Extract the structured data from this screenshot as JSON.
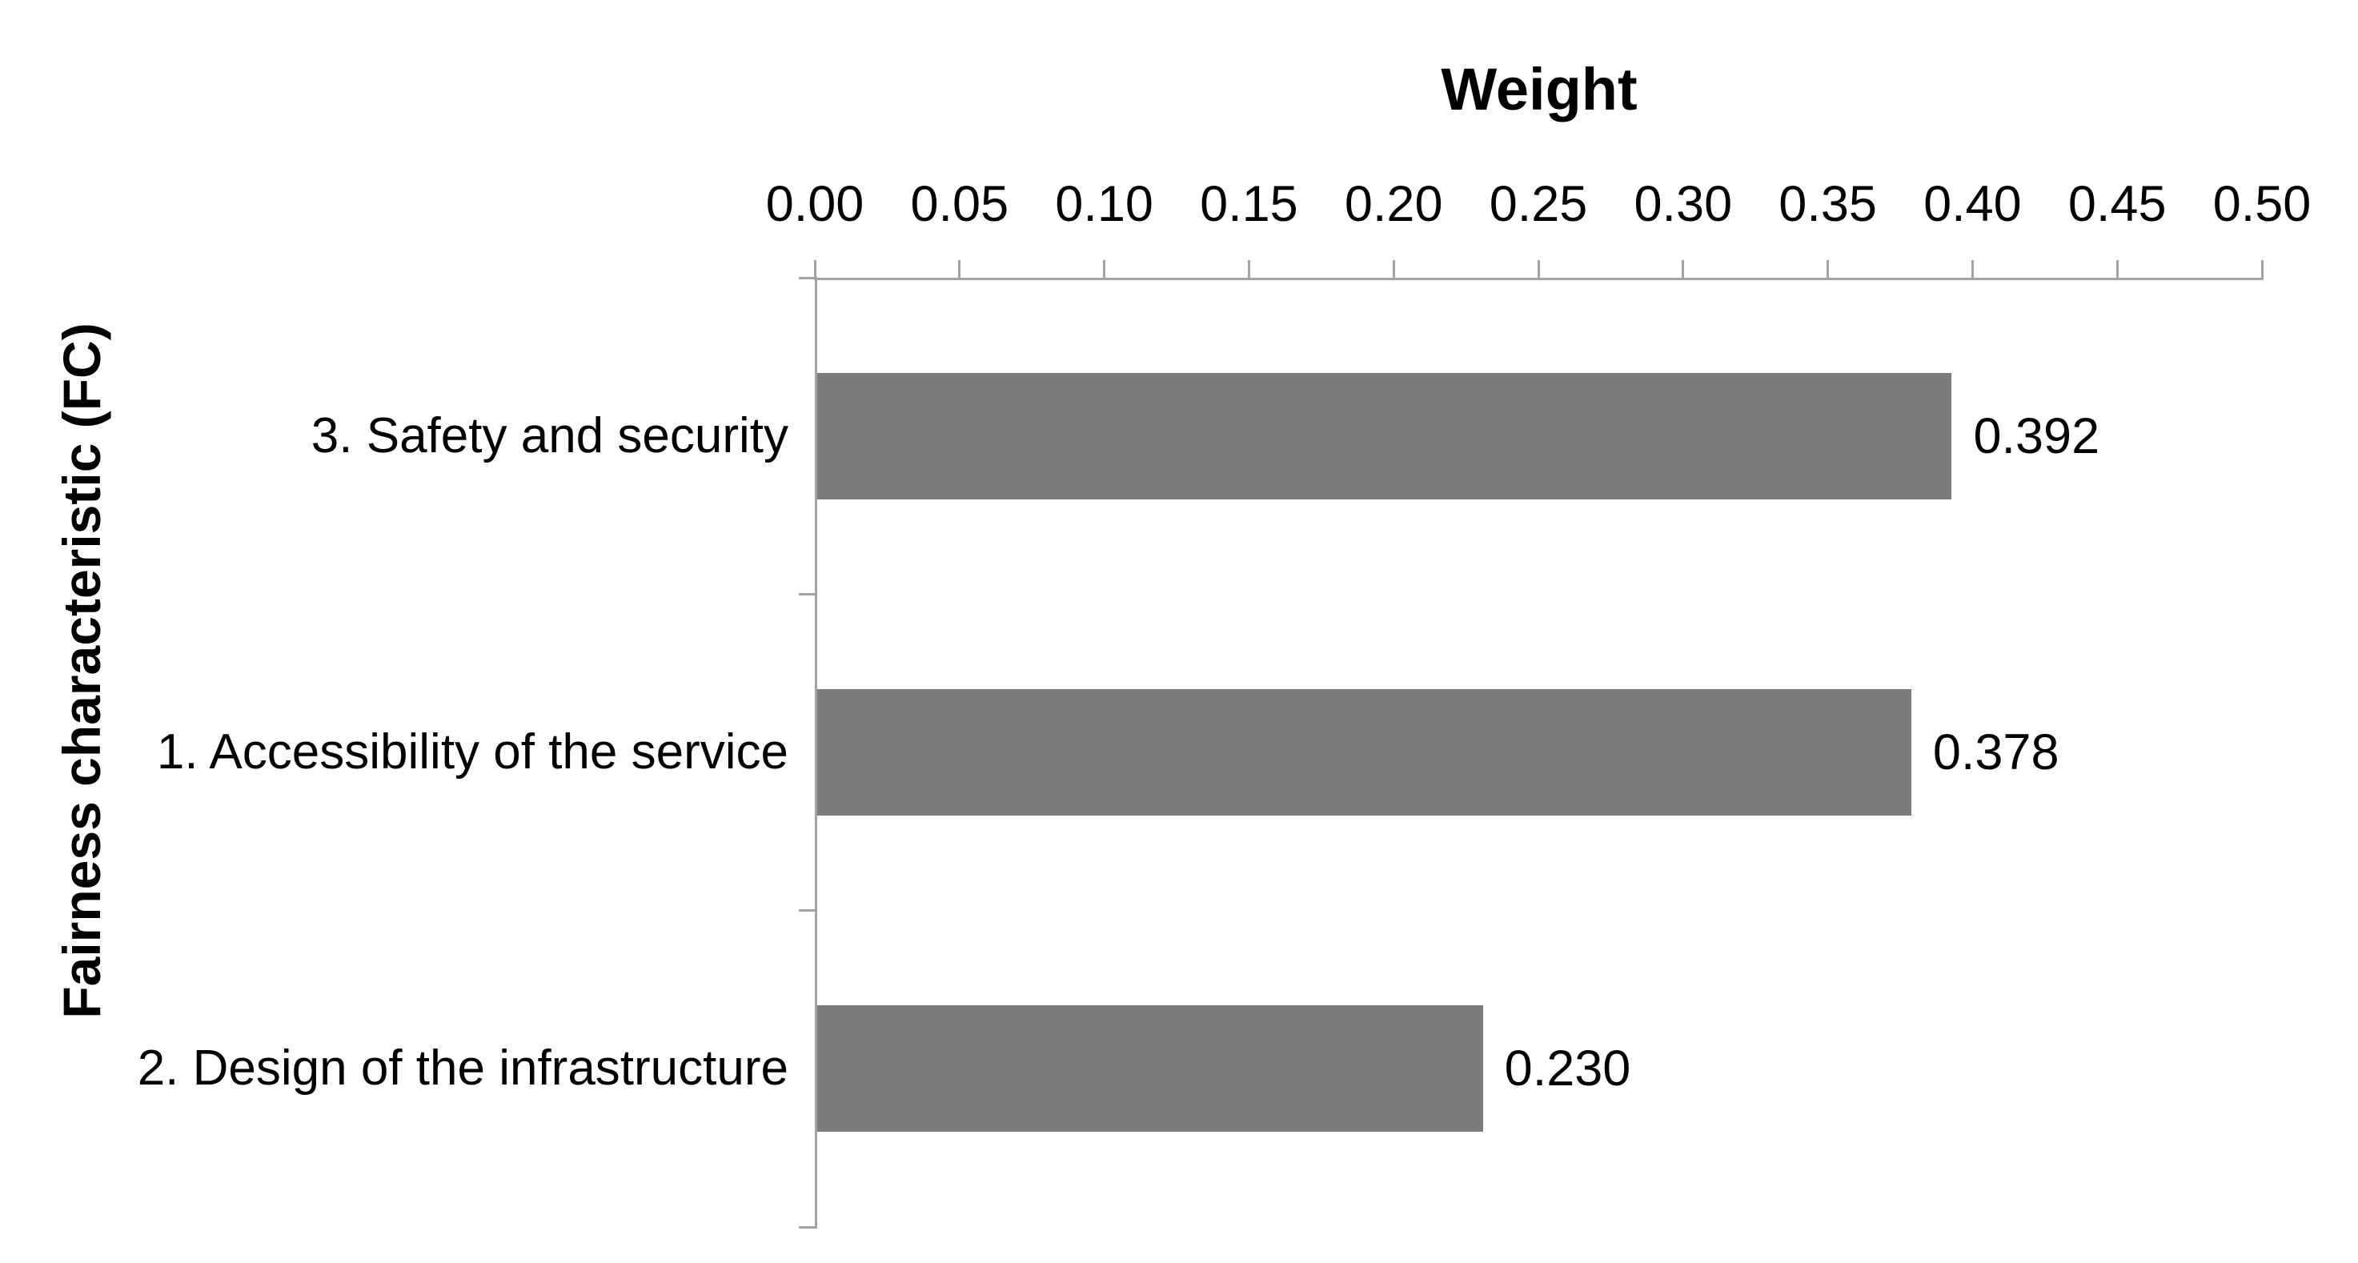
{
  "chart_data": {
    "type": "bar",
    "orientation": "horizontal",
    "title": "Weight",
    "xlabel": "Weight",
    "ylabel": "Fairness characteristic (FC)",
    "categories": [
      "3. Safety and security",
      "1. Accessibility of the service",
      "2. Design of the infrastructure"
    ],
    "values": [
      0.392,
      0.378,
      0.23
    ],
    "value_labels": [
      "0.392",
      "0.378",
      "0.230"
    ],
    "x_ticks": [
      0,
      0.05,
      0.1,
      0.15,
      0.2,
      0.25,
      0.3,
      0.35,
      0.4,
      0.45,
      0.5
    ],
    "x_tick_labels": [
      "0.00",
      "0.05",
      "0.10",
      "0.15",
      "0.20",
      "0.25",
      "0.30",
      "0.35",
      "0.40",
      "0.45",
      "0.50"
    ],
    "xlim": [
      0,
      0.5
    ],
    "grid": false,
    "legend_position": "none",
    "value_axis_position": "top",
    "colors": {
      "bar": "#7c7c7c",
      "axis": "#a3a3a3",
      "text": "#000000",
      "background": "#ffffff"
    }
  }
}
